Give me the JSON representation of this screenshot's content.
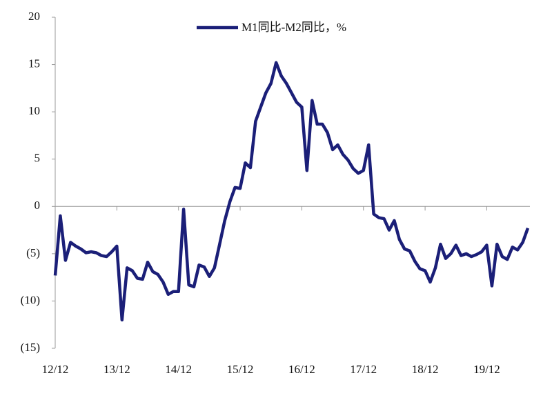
{
  "chart_data": {
    "type": "line",
    "categories": [
      "12/12",
      null,
      null,
      null,
      null,
      null,
      null,
      null,
      null,
      null,
      null,
      null,
      "13/12",
      null,
      null,
      null,
      null,
      null,
      null,
      null,
      null,
      null,
      null,
      null,
      "14/12",
      null,
      null,
      null,
      null,
      null,
      null,
      null,
      null,
      null,
      null,
      null,
      "15/12",
      null,
      null,
      null,
      null,
      null,
      null,
      null,
      null,
      null,
      null,
      null,
      "16/12",
      null,
      null,
      null,
      null,
      null,
      null,
      null,
      null,
      null,
      null,
      null,
      "17/12",
      null,
      null,
      null,
      null,
      null,
      null,
      null,
      null,
      null,
      null,
      null,
      "18/12",
      null,
      null,
      null,
      null,
      null,
      null,
      null,
      null,
      null,
      null,
      null,
      "19/12",
      null,
      null,
      null,
      null,
      null,
      null,
      null,
      null
    ],
    "series": [
      {
        "name": "M1同比-M2同比，%",
        "color": "#1b1f78",
        "values": [
          -7.3,
          -1.0,
          -5.7,
          -3.8,
          -4.2,
          -4.5,
          -4.9,
          -4.8,
          -4.9,
          -5.2,
          -5.3,
          -4.8,
          -4.2,
          -12,
          -6.5,
          -6.8,
          -7.6,
          -7.7,
          -5.9,
          -6.9,
          -7.2,
          -8.0,
          -9.3,
          -9.0,
          -9.0,
          -0.3,
          -8.3,
          -8.5,
          -6.2,
          -6.4,
          -7.4,
          -6.5,
          -4,
          -1.5,
          0.5,
          2.0,
          1.9,
          4.6,
          4.1,
          9,
          10.5,
          12,
          13,
          15.2,
          13.8,
          13,
          12,
          11,
          10.5,
          3.8,
          11.2,
          8.7,
          8.7,
          7.8,
          6.0,
          6.5,
          5.5,
          4.9,
          4.0,
          3.5,
          3.8,
          6.5,
          -0.8,
          -1.2,
          -1.3,
          -2.5,
          -1.5,
          -3.5,
          -4.5,
          -4.7,
          -5.8,
          -6.6,
          -6.8,
          -8.0,
          -6.5,
          -4.0,
          -5.5,
          -5.0,
          -4.1,
          -5.2,
          -5.0,
          -5.3,
          -5.1,
          -4.8,
          -4.1,
          -8.4,
          -4.0,
          -5.3,
          -5.6,
          -4.3,
          -4.6,
          -3.8,
          -2.3
        ]
      }
    ],
    "ylim": [
      -15,
      20
    ],
    "yticks": [
      {
        "value": -15,
        "label": "(15)"
      },
      {
        "value": -10,
        "label": "(10)"
      },
      {
        "value": -5,
        "label": "(5)"
      },
      0,
      5,
      10,
      15,
      20
    ]
  }
}
